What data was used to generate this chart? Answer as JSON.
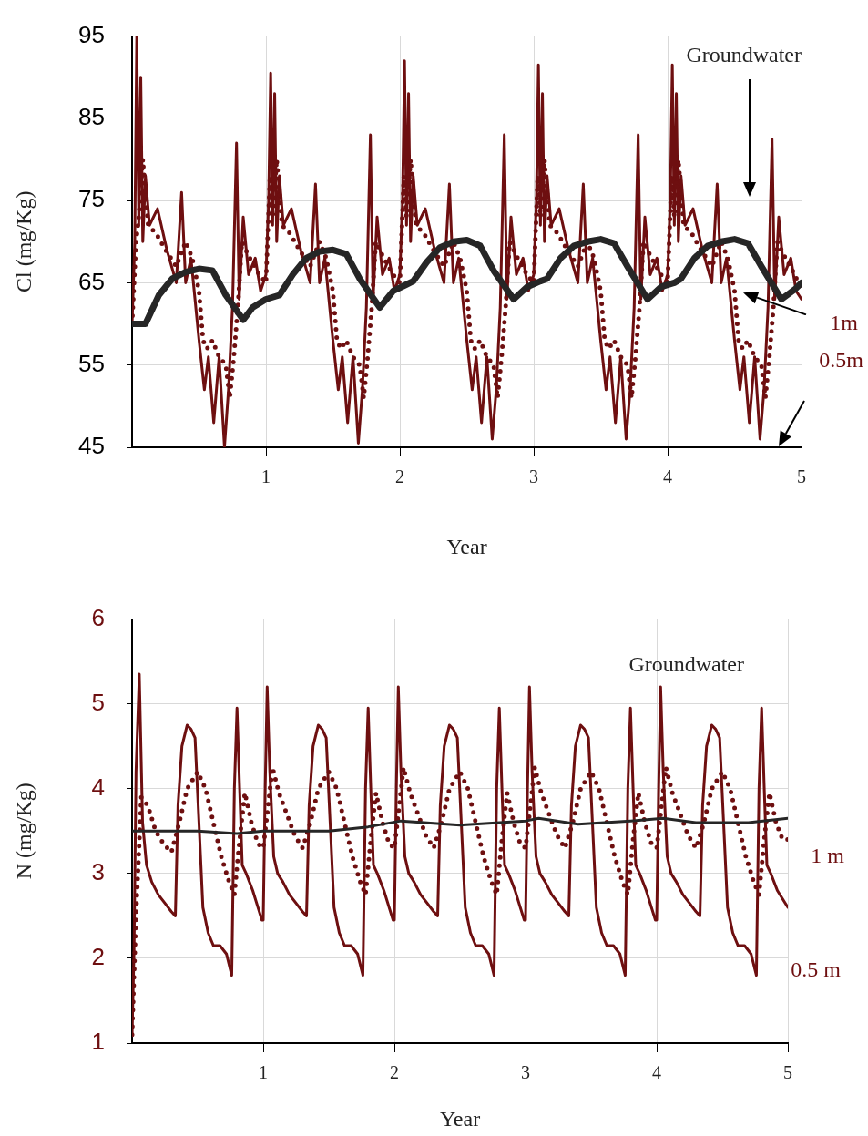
{
  "chart_data": [
    {
      "type": "line",
      "ylabel": "Cl (mg/Kg)",
      "xlabel": "Year",
      "xlim": [
        0,
        5
      ],
      "xticks": [
        1,
        2,
        3,
        4,
        5
      ],
      "ylim": [
        45,
        95
      ],
      "yticks": [
        45,
        55,
        65,
        75,
        85,
        95
      ],
      "grid": true,
      "legend": false,
      "marker": "none",
      "series": [
        {
          "name": "Groundwater",
          "color": "#262626",
          "line_style": "solid",
          "x": [
            0,
            0.1,
            0.2,
            0.3,
            0.4,
            0.5,
            0.6,
            0.7,
            0.83,
            0.9,
            1,
            1.1,
            1.2,
            1.3,
            1.4,
            1.5,
            1.6,
            1.7,
            1.85,
            1.95,
            2.05,
            2.1,
            2.2,
            2.3,
            2.4,
            2.5,
            2.6,
            2.7,
            2.85,
            2.95,
            3.05,
            3.1,
            3.2,
            3.3,
            3.4,
            3.5,
            3.6,
            3.7,
            3.85,
            3.95,
            4.05,
            4.1,
            4.2,
            4.3,
            4.4,
            4.5,
            4.6,
            4.7,
            4.85,
            4.95,
            5
          ],
          "values": [
            60,
            60,
            63.5,
            65.5,
            66.3,
            66.7,
            66.5,
            63.5,
            60.5,
            62,
            63,
            63.5,
            66,
            68,
            68.8,
            69,
            68.5,
            65.5,
            62,
            64,
            64.8,
            65.2,
            67.5,
            69.3,
            70,
            70.2,
            69.5,
            66.5,
            63,
            64.5,
            65.2,
            65.5,
            68,
            69.5,
            70,
            70.3,
            69.8,
            67,
            63,
            64.5,
            65,
            65.5,
            68,
            69.5,
            70,
            70.3,
            69.8,
            67,
            63,
            64.2,
            65
          ]
        },
        {
          "name": "1m",
          "color": "#6e0f10",
          "line_style": "dotted",
          "x": [
            0,
            0.03,
            0.05,
            0.08,
            0.12,
            0.18,
            0.25,
            0.33,
            0.4,
            0.45,
            0.5,
            0.53,
            0.56,
            0.6,
            0.65,
            0.7,
            0.73,
            0.76,
            0.79,
            0.82,
            0.88,
            0.95,
            1,
            1.03,
            1.05,
            1.08,
            1.12,
            1.18,
            1.25,
            1.33,
            1.4,
            1.45,
            1.5,
            1.53,
            1.56,
            1.6,
            1.65,
            1.7,
            1.73,
            1.76,
            1.79,
            1.82,
            1.88,
            1.95,
            2,
            2.03,
            2.05,
            2.08,
            2.12,
            2.18,
            2.25,
            2.33,
            2.4,
            2.45,
            2.5,
            2.53,
            2.56,
            2.6,
            2.65,
            2.7,
            2.73,
            2.76,
            2.79,
            2.82,
            2.88,
            2.95,
            3,
            3.03,
            3.05,
            3.08,
            3.12,
            3.18,
            3.25,
            3.33,
            3.4,
            3.45,
            3.5,
            3.53,
            3.56,
            3.6,
            3.65,
            3.7,
            3.73,
            3.76,
            3.79,
            3.82,
            3.88,
            3.95,
            4,
            4.03,
            4.05,
            4.08,
            4.12,
            4.18,
            4.25,
            4.33,
            4.4,
            4.45,
            4.5,
            4.53,
            4.56,
            4.6,
            4.65,
            4.7,
            4.73,
            4.76,
            4.79,
            4.82,
            4.88,
            4.95,
            5
          ],
          "values": [
            60,
            70,
            73,
            80,
            72,
            71,
            69,
            67,
            70,
            68,
            64,
            58,
            57,
            58,
            56,
            55,
            51,
            56,
            62,
            70,
            68,
            66,
            65,
            78,
            73,
            80,
            72,
            71,
            69,
            67,
            70,
            68,
            64,
            58,
            57,
            58,
            56,
            55,
            51,
            56,
            62,
            70,
            68,
            66,
            65,
            78,
            73,
            80,
            72,
            71,
            69,
            67,
            70,
            68,
            64,
            58,
            57,
            58,
            56,
            55,
            51,
            56,
            62,
            70,
            68,
            66,
            65,
            78,
            73,
            80,
            72,
            71,
            69,
            67,
            70,
            68,
            64,
            58,
            57,
            58,
            56,
            55,
            51,
            56,
            62,
            70,
            68,
            66,
            65,
            78,
            73,
            80,
            72,
            71,
            69,
            67,
            70,
            68,
            64,
            58,
            57,
            58,
            56,
            55,
            51,
            56,
            62,
            70,
            68,
            66,
            64
          ]
        },
        {
          "name": "0.5m",
          "color": "#6e0f10",
          "line_style": "solid",
          "x": [
            0,
            0.02,
            0.035,
            0.05,
            0.065,
            0.08,
            0.1,
            0.13,
            0.19,
            0.26,
            0.33,
            0.37,
            0.4,
            0.44,
            0.47,
            0.5,
            0.54,
            0.57,
            0.61,
            0.65,
            0.69,
            0.72,
            0.75,
            0.78,
            0.8,
            0.83,
            0.87,
            0.92,
            0.96,
            1,
            1.02,
            1.035,
            1.05,
            1.065,
            1.08,
            1.1,
            1.13,
            1.19,
            1.26,
            1.33,
            1.37,
            1.4,
            1.44,
            1.47,
            1.5,
            1.54,
            1.57,
            1.61,
            1.65,
            1.69,
            1.72,
            1.75,
            1.78,
            1.8,
            1.83,
            1.87,
            1.92,
            1.96,
            2,
            2.02,
            2.035,
            2.05,
            2.065,
            2.08,
            2.1,
            2.13,
            2.19,
            2.26,
            2.33,
            2.37,
            2.4,
            2.44,
            2.47,
            2.5,
            2.54,
            2.57,
            2.61,
            2.65,
            2.69,
            2.72,
            2.75,
            2.78,
            2.8,
            2.83,
            2.87,
            2.92,
            2.96,
            3,
            3.02,
            3.035,
            3.05,
            3.065,
            3.08,
            3.1,
            3.13,
            3.19,
            3.26,
            3.33,
            3.37,
            3.4,
            3.44,
            3.47,
            3.5,
            3.54,
            3.57,
            3.61,
            3.65,
            3.69,
            3.72,
            3.75,
            3.78,
            3.8,
            3.83,
            3.87,
            3.92,
            3.96,
            4,
            4.02,
            4.035,
            4.05,
            4.065,
            4.08,
            4.1,
            4.13,
            4.19,
            4.26,
            4.33,
            4.37,
            4.4,
            4.44,
            4.47,
            4.5,
            4.54,
            4.57,
            4.61,
            4.65,
            4.69,
            4.72,
            4.75,
            4.78,
            4.8,
            4.83,
            4.87,
            4.92,
            4.96,
            5
          ],
          "values": [
            60,
            70,
            95,
            72,
            90,
            70,
            78,
            72,
            74,
            69,
            65,
            76,
            65,
            68,
            63,
            58,
            52,
            56,
            48,
            56,
            45,
            52,
            62,
            82,
            63,
            73,
            66,
            68,
            64,
            66,
            75,
            90.5,
            72,
            88,
            70,
            78,
            72,
            74,
            69,
            65,
            77,
            65,
            68,
            63,
            58,
            52,
            56,
            48,
            56,
            45.5,
            52,
            62,
            83,
            63,
            73,
            66,
            68,
            64,
            66,
            75,
            92,
            72,
            88,
            70,
            78,
            72,
            74,
            69,
            65,
            77,
            65,
            68,
            63,
            58,
            52,
            56,
            48,
            56,
            46,
            52,
            62,
            83,
            63,
            73,
            66,
            68,
            64,
            66,
            75,
            91.5,
            72,
            88,
            70,
            78,
            72,
            74,
            69,
            65,
            77,
            65,
            68,
            63,
            58,
            52,
            56,
            48,
            56,
            46,
            52,
            62,
            83,
            63,
            73,
            66,
            68,
            64,
            66,
            75,
            91.5,
            72,
            88,
            70,
            78,
            72,
            74,
            69,
            65,
            77,
            65,
            68,
            63,
            58,
            52,
            56,
            48,
            56,
            46,
            52,
            62,
            82.5,
            63,
            73,
            66,
            68,
            64,
            63
          ]
        }
      ]
    },
    {
      "type": "line",
      "ylabel": "N (mg/Kg)",
      "xlabel": "Year",
      "xlim": [
        0,
        5
      ],
      "xticks": [
        1,
        2,
        3,
        4,
        5
      ],
      "ylim": [
        1,
        6
      ],
      "yticks": [
        1,
        2,
        3,
        4,
        5,
        6
      ],
      "grid": true,
      "legend": false,
      "marker": "none",
      "series": [
        {
          "name": "Groundwater",
          "color": "#262626",
          "line_style": "solid",
          "x": [
            0,
            0.5,
            0.8,
            1,
            1.5,
            1.8,
            2.05,
            2.5,
            3,
            3.1,
            3.4,
            3.8,
            4.05,
            4.3,
            4.7,
            5
          ],
          "values": [
            3.5,
            3.5,
            3.47,
            3.5,
            3.5,
            3.55,
            3.62,
            3.57,
            3.62,
            3.65,
            3.58,
            3.62,
            3.65,
            3.6,
            3.6,
            3.65
          ]
        },
        {
          "name": "1 m",
          "color": "#6e0f10",
          "line_style": "dotted",
          "x": [
            0,
            0.03,
            0.07,
            0.12,
            0.18,
            0.24,
            0.3,
            0.36,
            0.42,
            0.5,
            0.56,
            0.62,
            0.68,
            0.74,
            0.78,
            0.82,
            0.86,
            0.91,
            0.96,
            1,
            1.03,
            1.07,
            1.12,
            1.18,
            1.24,
            1.3,
            1.36,
            1.42,
            1.5,
            1.56,
            1.62,
            1.68,
            1.74,
            1.78,
            1.82,
            1.86,
            1.91,
            1.96,
            2,
            2.03,
            2.07,
            2.12,
            2.18,
            2.24,
            2.3,
            2.36,
            2.42,
            2.5,
            2.56,
            2.62,
            2.68,
            2.74,
            2.78,
            2.82,
            2.86,
            2.91,
            2.96,
            3,
            3.03,
            3.07,
            3.12,
            3.18,
            3.24,
            3.3,
            3.36,
            3.42,
            3.5,
            3.56,
            3.62,
            3.68,
            3.74,
            3.78,
            3.82,
            3.86,
            3.91,
            3.96,
            4,
            4.03,
            4.07,
            4.12,
            4.18,
            4.24,
            4.3,
            4.36,
            4.42,
            4.5,
            4.56,
            4.62,
            4.68,
            4.74,
            4.78,
            4.82,
            4.86,
            4.91,
            4.96,
            5
          ],
          "values": [
            1.1,
            2.5,
            3.9,
            3.8,
            3.5,
            3.35,
            3.25,
            3.6,
            4,
            4.2,
            4,
            3.6,
            3.2,
            2.9,
            2.75,
            3.4,
            3.95,
            3.6,
            3.35,
            3.3,
            3.7,
            4.25,
            3.95,
            3.7,
            3.45,
            3.3,
            3.6,
            4,
            4.2,
            4,
            3.6,
            3.2,
            2.9,
            2.75,
            3.4,
            3.95,
            3.6,
            3.35,
            3.3,
            3.7,
            4.25,
            3.95,
            3.7,
            3.45,
            3.3,
            3.6,
            4,
            4.2,
            4,
            3.6,
            3.2,
            2.9,
            2.75,
            3.4,
            3.95,
            3.6,
            3.35,
            3.3,
            3.7,
            4.25,
            3.95,
            3.7,
            3.45,
            3.3,
            3.6,
            4,
            4.2,
            4,
            3.6,
            3.2,
            2.9,
            2.75,
            3.4,
            3.95,
            3.6,
            3.35,
            3.3,
            3.7,
            4.25,
            3.95,
            3.7,
            3.45,
            3.3,
            3.6,
            4,
            4.2,
            4,
            3.6,
            3.2,
            2.9,
            2.75,
            3.4,
            3.95,
            3.6,
            3.4,
            3.4
          ]
        },
        {
          "name": "0.5 m",
          "color": "#6e0f10",
          "line_style": "solid",
          "x": [
            0,
            0.015,
            0.03,
            0.055,
            0.08,
            0.11,
            0.15,
            0.2,
            0.25,
            0.3,
            0.33,
            0.35,
            0.38,
            0.42,
            0.45,
            0.48,
            0.51,
            0.54,
            0.58,
            0.62,
            0.67,
            0.72,
            0.76,
            0.78,
            0.8,
            0.82,
            0.84,
            0.87,
            0.92,
            0.96,
            0.99,
            1,
            1.015,
            1.03,
            1.05,
            1.08,
            1.11,
            1.15,
            1.2,
            1.25,
            1.3,
            1.33,
            1.35,
            1.38,
            1.42,
            1.45,
            1.48,
            1.51,
            1.54,
            1.58,
            1.62,
            1.67,
            1.72,
            1.76,
            1.78,
            1.8,
            1.82,
            1.84,
            1.87,
            1.92,
            1.96,
            1.99,
            2,
            2.015,
            2.03,
            2.05,
            2.08,
            2.11,
            2.15,
            2.2,
            2.25,
            2.3,
            2.33,
            2.35,
            2.38,
            2.42,
            2.45,
            2.48,
            2.51,
            2.54,
            2.58,
            2.62,
            2.67,
            2.72,
            2.76,
            2.78,
            2.8,
            2.82,
            2.84,
            2.87,
            2.92,
            2.96,
            2.99,
            3,
            3.015,
            3.03,
            3.05,
            3.08,
            3.11,
            3.15,
            3.2,
            3.25,
            3.3,
            3.33,
            3.35,
            3.38,
            3.42,
            3.45,
            3.48,
            3.51,
            3.54,
            3.58,
            3.62,
            3.67,
            3.72,
            3.76,
            3.78,
            3.8,
            3.82,
            3.84,
            3.87,
            3.92,
            3.96,
            3.99,
            4,
            4.015,
            4.03,
            4.05,
            4.08,
            4.11,
            4.15,
            4.2,
            4.25,
            4.3,
            4.33,
            4.35,
            4.38,
            4.42,
            4.45,
            4.48,
            4.51,
            4.54,
            4.58,
            4.62,
            4.67,
            4.72,
            4.76,
            4.78,
            4.8,
            4.82,
            4.84,
            4.87,
            4.92,
            4.96,
            5
          ],
          "values": [
            1.1,
            2.1,
            4.2,
            5.35,
            3.6,
            3.1,
            2.9,
            2.75,
            2.65,
            2.55,
            2.5,
            3.8,
            4.5,
            4.75,
            4.7,
            4.6,
            3.6,
            2.6,
            2.3,
            2.15,
            2.15,
            2.05,
            1.8,
            4,
            4.95,
            4,
            3.1,
            3,
            2.8,
            2.6,
            2.45,
            2.45,
            4,
            5.2,
            4.2,
            3.2,
            3,
            2.9,
            2.75,
            2.65,
            2.55,
            2.5,
            3.8,
            4.5,
            4.75,
            4.7,
            4.6,
            3.6,
            2.6,
            2.3,
            2.15,
            2.15,
            2.05,
            1.8,
            4,
            4.95,
            4,
            3.1,
            3,
            2.8,
            2.6,
            2.45,
            2.45,
            4,
            5.2,
            4.2,
            3.2,
            3,
            2.9,
            2.75,
            2.65,
            2.55,
            2.5,
            3.8,
            4.5,
            4.75,
            4.7,
            4.6,
            3.6,
            2.6,
            2.3,
            2.15,
            2.15,
            2.05,
            1.8,
            4,
            4.95,
            4,
            3.1,
            3,
            2.8,
            2.6,
            2.45,
            2.45,
            4,
            5.2,
            4.2,
            3.2,
            3,
            2.9,
            2.75,
            2.65,
            2.55,
            2.5,
            3.8,
            4.5,
            4.75,
            4.7,
            4.6,
            3.6,
            2.6,
            2.3,
            2.15,
            2.15,
            2.05,
            1.8,
            4,
            4.95,
            4,
            3.1,
            3,
            2.8,
            2.6,
            2.45,
            2.45,
            4,
            5.2,
            4.2,
            3.2,
            3,
            2.9,
            2.75,
            2.65,
            2.55,
            2.5,
            3.8,
            4.5,
            4.75,
            4.7,
            4.6,
            3.6,
            2.6,
            2.3,
            2.15,
            2.15,
            2.05,
            1.8,
            4,
            4.95,
            4,
            3.1,
            3,
            2.8,
            2.7,
            2.6
          ]
        }
      ]
    }
  ]
}
